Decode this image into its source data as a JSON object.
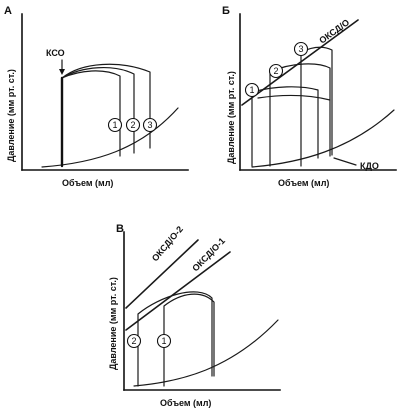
{
  "panels": {
    "a": {
      "letter": "А",
      "ylabel": "Давление (мм рт. ст.)",
      "xlabel": "Объем (мл)",
      "annotation": "КСО",
      "markers": [
        "1",
        "2",
        "3"
      ]
    },
    "b": {
      "letter": "Б",
      "ylabel": "Давление (мм рт. ст.)",
      "xlabel": "Объем (мл)",
      "line_label": "ОКСД/О",
      "edv_label": "КДО",
      "markers": [
        "1",
        "2",
        "3"
      ]
    },
    "c": {
      "letter": "В",
      "ylabel": "Давление (мм рт. ст.)",
      "xlabel": "Объем (мл)",
      "line_label_1": "ОКСД/О-2",
      "line_label_2": "ОКСД/О-1",
      "markers": [
        "2",
        "1"
      ]
    }
  },
  "colors": {
    "ink": "#111111",
    "background": "#ffffff"
  }
}
